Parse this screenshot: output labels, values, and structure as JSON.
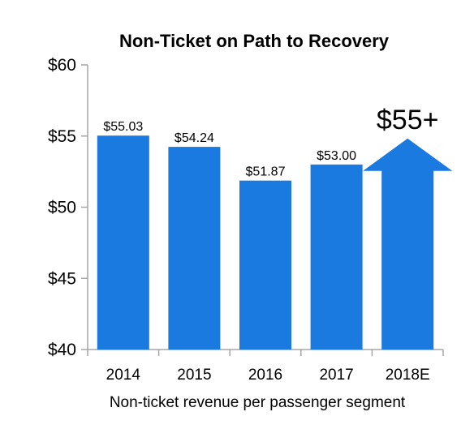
{
  "chart_data": {
    "type": "bar",
    "title": "Non-Ticket on Path to Recovery",
    "xlabel": "Non-ticket revenue per passenger segment",
    "ylabel": "",
    "ylim": [
      40,
      60
    ],
    "yticks": [
      40,
      45,
      50,
      55,
      60
    ],
    "ytick_labels": [
      "$40",
      "$45",
      "$50",
      "$55",
      "$60"
    ],
    "categories": [
      "2014",
      "2015",
      "2016",
      "2017",
      "2018E"
    ],
    "values": [
      55.03,
      54.24,
      51.87,
      53.0,
      null
    ],
    "data_labels": [
      "$55.03",
      "$54.24",
      "$51.87",
      "$53.00",
      ""
    ],
    "projection": {
      "category": "2018E",
      "value": 55,
      "label": "$55+",
      "shape": "up-arrow"
    },
    "grid": false,
    "legend": "none",
    "bar_color": "#1a7ae0",
    "axis_color": "#a6a6a6"
  }
}
